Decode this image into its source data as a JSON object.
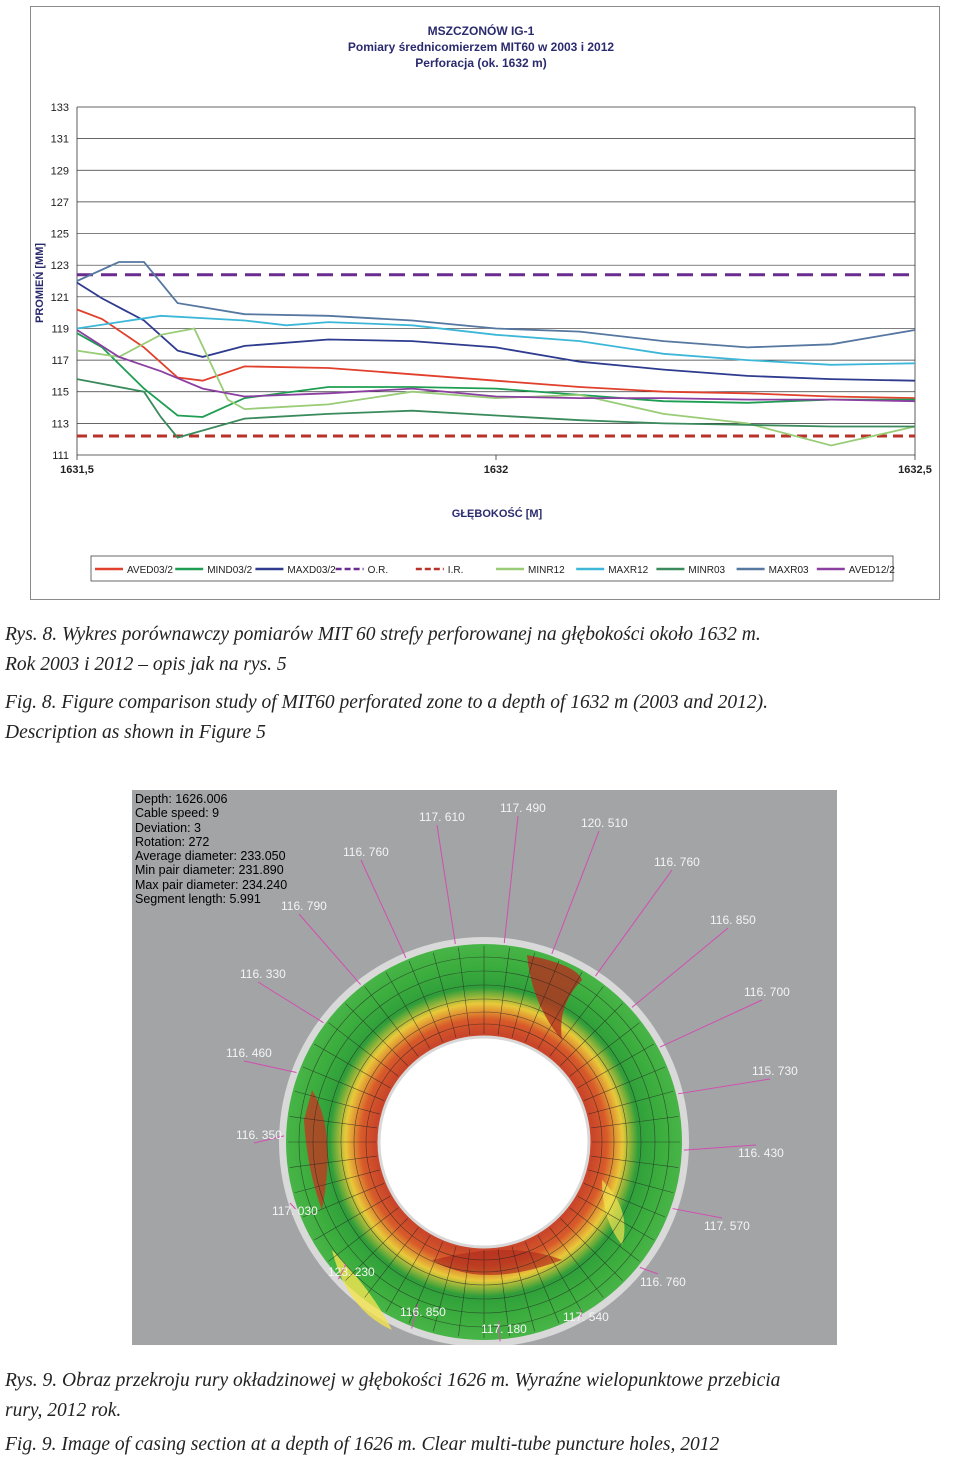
{
  "chart_data": {
    "type": "line",
    "title": "MSZCZONÓW IG-1",
    "subtitle": "Pomiary średnicomierzem MIT60 w 2003 i 2012",
    "subtitle2": "Perforacja (ok. 1632 m)",
    "xlabel": "GŁĘBOKOŚĆ [M]",
    "ylabel": "PROMIEŃ [MM]",
    "xlim": [
      1631.5,
      1632.5
    ],
    "ylim": [
      111,
      133
    ],
    "x_ticks": [
      "1631,5",
      "1632",
      "1632,5"
    ],
    "y_ticks": [
      "133",
      "131",
      "129",
      "127",
      "125",
      "123",
      "121",
      "119",
      "117",
      "115",
      "113",
      "111"
    ],
    "grid": true,
    "legend_position": "bottom",
    "series": [
      {
        "name": "AVED03/2",
        "color": "#e0402c",
        "x": [
          1631.5,
          1631.53,
          1631.58,
          1631.62,
          1631.65,
          1631.7,
          1631.8,
          1631.9,
          1632.0,
          1632.1,
          1632.2,
          1632.3,
          1632.4,
          1632.5
        ],
        "y": [
          120.2,
          119.6,
          117.8,
          115.9,
          115.7,
          116.6,
          116.5,
          116.1,
          115.7,
          115.3,
          115.0,
          114.9,
          114.7,
          114.6
        ]
      },
      {
        "name": "MIND03/2",
        "color": "#1e9e52",
        "x": [
          1631.5,
          1631.53,
          1631.58,
          1631.62,
          1631.65,
          1631.7,
          1631.8,
          1631.9,
          1632.0,
          1632.1,
          1632.2,
          1632.3,
          1632.4,
          1632.5
        ],
        "y": [
          118.7,
          117.8,
          115.2,
          113.5,
          113.4,
          114.6,
          115.3,
          115.3,
          115.2,
          114.8,
          114.4,
          114.3,
          114.5,
          114.5
        ]
      },
      {
        "name": "MAXD03/2",
        "color": "#2e3b8e",
        "x": [
          1631.5,
          1631.53,
          1631.58,
          1631.62,
          1631.65,
          1631.7,
          1631.8,
          1631.9,
          1632.0,
          1632.1,
          1632.2,
          1632.3,
          1632.4,
          1632.5
        ],
        "y": [
          121.9,
          120.9,
          119.5,
          117.6,
          117.2,
          117.9,
          118.3,
          118.2,
          117.8,
          116.9,
          116.4,
          116.0,
          115.8,
          115.7
        ]
      },
      {
        "name": "O.R.",
        "color": "#6a2c8e",
        "x": [
          1631.5,
          1632.5
        ],
        "y": [
          122.4,
          122.4
        ]
      },
      {
        "name": "I.R.",
        "color": "#b8322a",
        "x": [
          1631.5,
          1632.5
        ],
        "y": [
          112.2,
          112.2
        ]
      },
      {
        "name": "MINR12",
        "color": "#99cc77",
        "x": [
          1631.5,
          1631.55,
          1631.6,
          1631.64,
          1631.68,
          1631.7,
          1631.8,
          1631.9,
          1632.0,
          1632.1,
          1632.2,
          1632.3,
          1632.4,
          1632.5
        ],
        "y": [
          117.6,
          117.2,
          118.6,
          119.0,
          114.5,
          113.9,
          114.2,
          115.0,
          114.6,
          114.8,
          113.6,
          113.0,
          111.6,
          112.8
        ]
      },
      {
        "name": "MAXR12",
        "color": "#3db7d8",
        "x": [
          1631.5,
          1631.6,
          1631.7,
          1631.75,
          1631.8,
          1631.9,
          1632.0,
          1632.1,
          1632.2,
          1632.3,
          1632.4,
          1632.5
        ],
        "y": [
          119.0,
          119.8,
          119.5,
          119.2,
          119.4,
          119.2,
          118.6,
          118.2,
          117.4,
          117.0,
          116.7,
          116.8
        ]
      },
      {
        "name": "MINR03",
        "color": "#3a8a5c",
        "x": [
          1631.5,
          1631.58,
          1631.6,
          1631.62,
          1631.7,
          1631.8,
          1631.9,
          1632.0,
          1632.1,
          1632.2,
          1632.3,
          1632.4,
          1632.5
        ],
        "y": [
          115.8,
          115.0,
          113.4,
          112.1,
          113.3,
          113.6,
          113.8,
          113.5,
          113.2,
          113.0,
          112.9,
          112.8,
          112.8
        ]
      },
      {
        "name": "MAXR03",
        "color": "#5577a0",
        "x": [
          1631.5,
          1631.55,
          1631.58,
          1631.62,
          1631.7,
          1631.8,
          1631.9,
          1632.0,
          1632.1,
          1632.2,
          1632.3,
          1632.4,
          1632.5
        ],
        "y": [
          122.0,
          123.2,
          123.2,
          120.6,
          119.9,
          119.8,
          119.5,
          119.0,
          118.8,
          118.2,
          117.8,
          118.0,
          118.9
        ]
      },
      {
        "name": "AVED12/2",
        "color": "#8b3fa0",
        "x": [
          1631.5,
          1631.55,
          1631.6,
          1631.65,
          1631.7,
          1631.8,
          1631.9,
          1632.0,
          1632.1,
          1632.2,
          1632.3,
          1632.4,
          1632.5
        ],
        "y": [
          118.9,
          117.2,
          116.3,
          115.2,
          114.7,
          114.9,
          115.2,
          114.7,
          114.6,
          114.6,
          114.5,
          114.5,
          114.4
        ]
      }
    ]
  },
  "caption1": {
    "pl_line1": "Rys. 8. Wykres porównawczy pomiarów MIT 60 strefy perforowanej na głębokości około 1632 m.",
    "pl_line2": "Rok 2003 i 2012 – opis jak na rys. 5",
    "en_line1": "Fig. 8. Figure comparison study of MIT60 perforated zone to a depth of 1632 m (2003 and 2012).",
    "en_line2": "Description as shown in Figure 5"
  },
  "figure2": {
    "info": [
      "Depth: 1626.006",
      "Cable speed: 9",
      "Deviation: 3",
      "Rotation: 272",
      "Average diameter: 233.050",
      "Min pair diameter: 231.890",
      "Max pair diameter: 234.240",
      "Segment length: 5.991"
    ],
    "labels": [
      "117. 490",
      "117. 610",
      "120. 510",
      "116. 760",
      "116. 760",
      "116. 790",
      "116. 850",
      "116. 330",
      "116. 700",
      "116. 460",
      "115. 730",
      "116. 350",
      "116. 430",
      "117. 030",
      "117. 570",
      "123. 230",
      "116. 760",
      "116. 850",
      "117. 540",
      "117. 180"
    ]
  },
  "caption2": {
    "pl_line1": "Rys. 9. Obraz przekroju rury okładzinowej w głębokości 1626 m. Wyraźne wielopunktowe przebicia",
    "pl_line2": "rury, 2012 rok.",
    "en_line1": "Fig. 9. Image of casing section at a depth of 1626 m. Clear multi-tube puncture holes, 2012"
  }
}
